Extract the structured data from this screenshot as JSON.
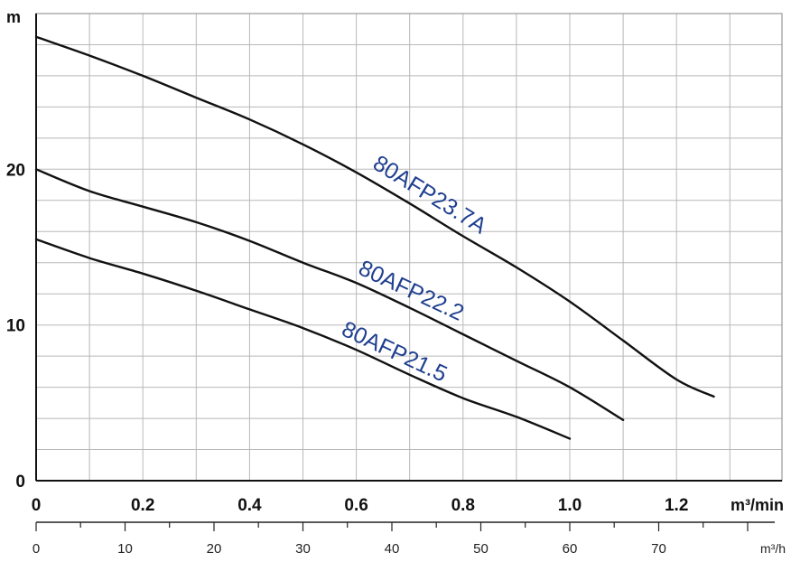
{
  "chart_data": {
    "type": "line",
    "title": "",
    "ylabel": "m",
    "xlabel": "m³/min",
    "secondary_xlabel": "m³/h",
    "xlim": [
      0,
      1.38
    ],
    "ylim": [
      0,
      30
    ],
    "grid": true,
    "x_ticks": [
      {
        "value": 0,
        "label": "0"
      },
      {
        "value": 0.2,
        "label": "0.2"
      },
      {
        "value": 0.4,
        "label": "0.4"
      },
      {
        "value": 0.6,
        "label": "0.6"
      },
      {
        "value": 0.8,
        "label": "0.8"
      },
      {
        "value": 1.0,
        "label": "1.0"
      },
      {
        "value": 1.2,
        "label": "1.2"
      }
    ],
    "y_ticks": [
      {
        "value": 0,
        "label": "0"
      },
      {
        "value": 10,
        "label": "10"
      },
      {
        "value": 20,
        "label": "20"
      }
    ],
    "secondary_x_ticks": [
      {
        "value": 0,
        "label": "0"
      },
      {
        "value": 10,
        "label": "10"
      },
      {
        "value": 20,
        "label": "20"
      },
      {
        "value": 30,
        "label": "30"
      },
      {
        "value": 40,
        "label": "40"
      },
      {
        "value": 50,
        "label": "50"
      },
      {
        "value": 60,
        "label": "60"
      },
      {
        "value": 70,
        "label": "70"
      }
    ],
    "series": [
      {
        "name": "80AFP23.7A",
        "color": "#111111",
        "label_color": "#1f3f8f",
        "x": [
          0,
          0.1,
          0.2,
          0.3,
          0.4,
          0.5,
          0.6,
          0.7,
          0.8,
          0.9,
          1.0,
          1.1,
          1.2,
          1.27
        ],
        "y": [
          28.5,
          27.3,
          26.0,
          24.6,
          23.2,
          21.6,
          19.8,
          17.8,
          15.7,
          13.7,
          11.5,
          9.0,
          6.5,
          5.4
        ]
      },
      {
        "name": "80AFP22.2",
        "color": "#111111",
        "label_color": "#1f3f8f",
        "x": [
          0,
          0.1,
          0.2,
          0.3,
          0.4,
          0.5,
          0.6,
          0.7,
          0.8,
          0.9,
          1.0,
          1.1
        ],
        "y": [
          20.0,
          18.6,
          17.6,
          16.6,
          15.4,
          14.0,
          12.7,
          11.1,
          9.4,
          7.7,
          6.0,
          3.9
        ]
      },
      {
        "name": "80AFP21.5",
        "color": "#111111",
        "label_color": "#1f3f8f",
        "x": [
          0,
          0.1,
          0.2,
          0.3,
          0.4,
          0.5,
          0.6,
          0.7,
          0.8,
          0.9,
          1.0
        ],
        "y": [
          15.5,
          14.3,
          13.3,
          12.2,
          11.0,
          9.8,
          8.4,
          6.8,
          5.3,
          4.1,
          2.7
        ]
      }
    ]
  }
}
